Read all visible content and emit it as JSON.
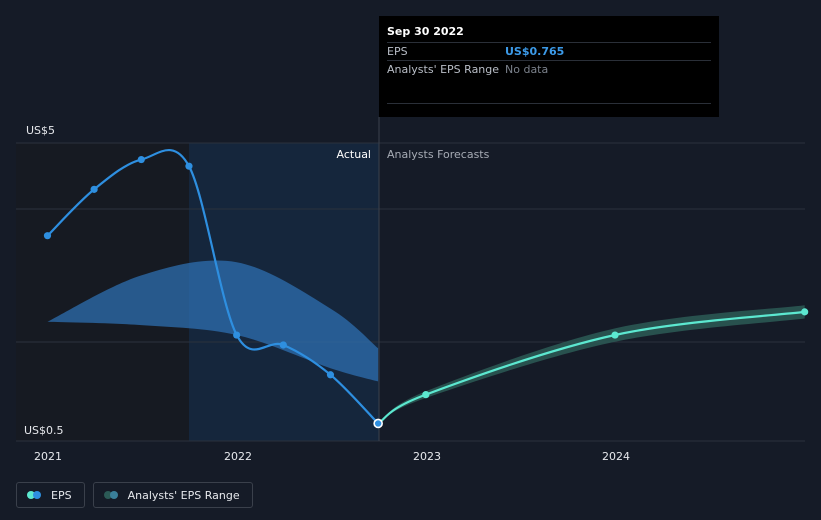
{
  "chart_data": {
    "type": "line",
    "x_axis": {
      "ticks": [
        "2021",
        "2022",
        "2023",
        "2024"
      ]
    },
    "y_axis": {
      "top_label": "US$5",
      "bottom_label": "US$0.5",
      "ylim": [
        0.5,
        5
      ]
    },
    "regions": {
      "actual_label": "Actual",
      "forecast_label": "Analysts Forecasts"
    },
    "series": [
      {
        "name": "EPS",
        "color": "#2e8fe0",
        "points": [
          {
            "x": "2020-12-31",
            "y": 3.6
          },
          {
            "x": "2021-03-31",
            "y": 4.3
          },
          {
            "x": "2021-06-30",
            "y": 4.75
          },
          {
            "x": "2021-09-30",
            "y": 4.65
          },
          {
            "x": "2021-12-31",
            "y": 2.1
          },
          {
            "x": "2022-03-31",
            "y": 1.95
          },
          {
            "x": "2022-06-30",
            "y": 1.5
          },
          {
            "x": "2022-09-30",
            "y": 0.765
          }
        ]
      },
      {
        "name": "EPS",
        "color": "#5ce8d0",
        "points": [
          {
            "x": "2022-09-30",
            "y": 0.765
          },
          {
            "x": "2022-12-31",
            "y": 1.2
          },
          {
            "x": "2023-12-31",
            "y": 2.1
          },
          {
            "x": "2024-12-31",
            "y": 2.45
          }
        ]
      }
    ],
    "past_range_band": {
      "color": "#2e6fb0",
      "x": [
        "2020-12-31",
        "2021-06-30",
        "2021-12-31",
        "2022-06-30",
        "2022-09-30"
      ],
      "upper": [
        2.3,
        3.0,
        3.2,
        2.5,
        1.9
      ],
      "lower": [
        2.3,
        2.25,
        2.1,
        1.6,
        1.4
      ]
    },
    "forecast_range_band": {
      "color": "#2b5a56",
      "x": [
        "2022-09-30",
        "2022-12-31",
        "2023-12-31",
        "2024-12-31"
      ],
      "upper": [
        0.765,
        1.25,
        2.2,
        2.55
      ],
      "lower": [
        0.765,
        1.15,
        2.0,
        2.35
      ]
    },
    "grid": true
  },
  "tooltip": {
    "date": "Sep 30 2022",
    "eps_label": "EPS",
    "eps_value": "US$0.765",
    "range_label": "Analysts' EPS Range",
    "range_value": "No data"
  },
  "legend": {
    "eps_label": "EPS",
    "range_label": "Analysts' EPS Range",
    "eps_colors": [
      "#5ce8d0",
      "#2e8fe0"
    ],
    "range_colors": [
      "#2b5a56",
      "#3a7f9a"
    ]
  }
}
